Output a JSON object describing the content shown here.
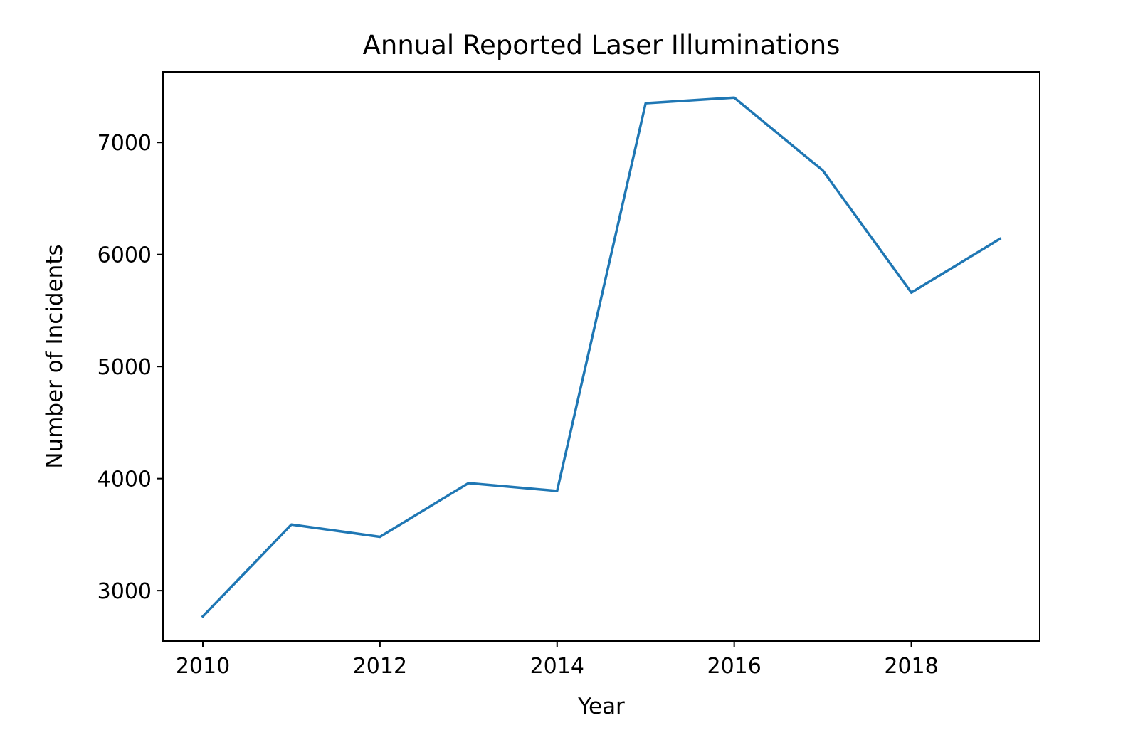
{
  "chart_data": {
    "type": "line",
    "title": "Annual Reported Laser Illuminations",
    "xlabel": "Year",
    "ylabel": "Number of Incidents",
    "x": [
      2010,
      2011,
      2012,
      2013,
      2014,
      2015,
      2016,
      2017,
      2018,
      2019
    ],
    "series": [
      {
        "values": [
          2770,
          3590,
          3480,
          3960,
          3890,
          7350,
          7400,
          6750,
          5660,
          6140
        ],
        "color": "#1f77b4"
      }
    ],
    "xlim": [
      2009.55,
      2019.45
    ],
    "ylim": [
      2550,
      7630
    ],
    "xticks": [
      2010,
      2012,
      2014,
      2016,
      2018
    ],
    "yticks": [
      3000,
      4000,
      5000,
      6000,
      7000
    ],
    "grid": false,
    "legend": "none"
  }
}
